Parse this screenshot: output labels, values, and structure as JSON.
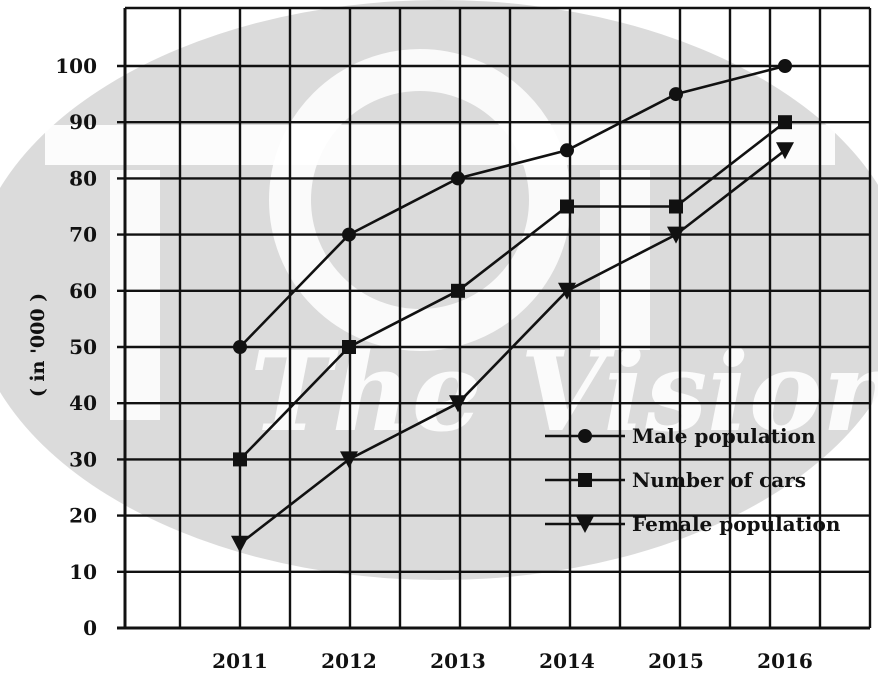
{
  "chart_data": {
    "type": "line",
    "categories": [
      "2011",
      "2012",
      "2013",
      "2014",
      "2015",
      "2016"
    ],
    "series": [
      {
        "name": "Male population",
        "values": [
          50,
          70,
          80,
          85,
          95,
          100
        ],
        "marker": "circle"
      },
      {
        "name": "Number of cars",
        "values": [
          30,
          50,
          60,
          75,
          75,
          90
        ],
        "marker": "square"
      },
      {
        "name": "Female population",
        "values": [
          15,
          30,
          40,
          60,
          70,
          85
        ],
        "marker": "triangle"
      }
    ],
    "ylabel": "( in '000 )",
    "ylim": [
      0,
      100
    ],
    "yticks": [
      "0",
      "10",
      "20",
      "30",
      "40",
      "50",
      "60",
      "70",
      "80",
      "90",
      "100"
    ],
    "grid": true,
    "legend_position": "bottom-right",
    "colors": {
      "line": "#111111",
      "grid": "#111111",
      "watermark": "#cfcfcf"
    },
    "watermark": "The Vision"
  }
}
